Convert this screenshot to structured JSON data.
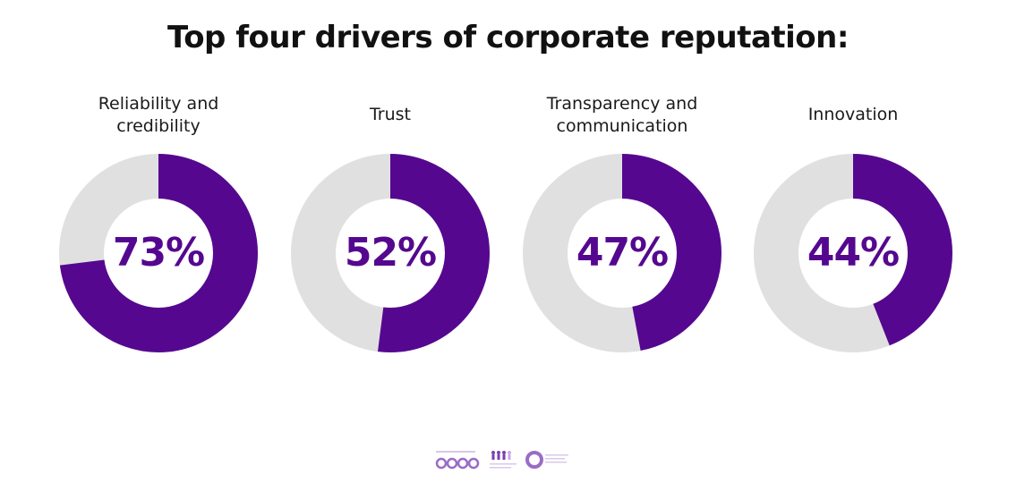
{
  "colors": {
    "filled": "#55088f",
    "remaining": "#e0e0e0",
    "hole": "#ffffff",
    "percent_text": "#55088f",
    "title_text": "#111111"
  },
  "chart_data": {
    "type": "pie",
    "title": "Top four drivers of corporate reputation:",
    "categories": [
      "Reliability and credibility",
      "Trust",
      "Transparency and communication",
      "Innovation"
    ],
    "values": [
      73,
      52,
      47,
      44
    ],
    "value_labels": [
      "73%",
      "52%",
      "47%",
      "44%"
    ]
  },
  "header": {
    "title": "Top four drivers of corporate reputation:"
  },
  "drivers": [
    {
      "label_lines": [
        "Reliability and",
        "credibility"
      ],
      "percent": 73,
      "percent_label": "73%"
    },
    {
      "label_lines": [
        "Trust"
      ],
      "percent": 52,
      "percent_label": "52%"
    },
    {
      "label_lines": [
        "Transparency and",
        "communication"
      ],
      "percent": 47,
      "percent_label": "47%"
    },
    {
      "label_lines": [
        "Innovation"
      ],
      "percent": 44,
      "percent_label": "44%"
    }
  ],
  "footer": {
    "logo_icons": [
      "donut-row-thumbnail-icon",
      "people-figures-thumbnail-icon",
      "circle-logo-icon"
    ]
  }
}
